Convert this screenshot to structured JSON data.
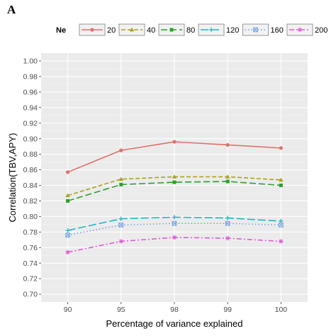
{
  "panel_label": "A",
  "chart_data": {
    "type": "line",
    "categories": [
      "90",
      "95",
      "98",
      "99",
      "100"
    ],
    "xlabel": "Percentage of variance explained",
    "ylabel": "Correlation(TBV,APY)",
    "ylim": [
      0.69,
      1.01
    ],
    "yticks": [
      "0.70",
      "0.72",
      "0.74",
      "0.76",
      "0.78",
      "0.80",
      "0.82",
      "0.84",
      "0.86",
      "0.88",
      "0.90",
      "0.92",
      "0.94",
      "0.96",
      "0.98",
      "1.00"
    ],
    "grid": true,
    "legend_position": "top",
    "legend_title": "Ne",
    "series": [
      {
        "name": "20",
        "values": [
          0.857,
          0.885,
          0.896,
          0.892,
          0.888
        ],
        "color": "#e0706b",
        "dash": "",
        "marker": "circle"
      },
      {
        "name": "40",
        "values": [
          0.827,
          0.848,
          0.851,
          0.851,
          0.847
        ],
        "color": "#aba21f",
        "dash": "6 3",
        "marker": "triangle"
      },
      {
        "name": "80",
        "values": [
          0.82,
          0.841,
          0.844,
          0.845,
          0.84
        ],
        "color": "#2ca02c",
        "dash": "9 4",
        "marker": "square"
      },
      {
        "name": "120",
        "values": [
          0.782,
          0.797,
          0.799,
          0.798,
          0.794
        ],
        "color": "#1fb7c4",
        "dash": "11 4",
        "marker": "plus"
      },
      {
        "name": "160",
        "values": [
          0.776,
          0.789,
          0.791,
          0.791,
          0.789
        ],
        "color": "#6e9fe0",
        "dash": "1.5 3",
        "marker": "squarex"
      },
      {
        "name": "200",
        "values": [
          0.754,
          0.768,
          0.773,
          0.772,
          0.768
        ],
        "color": "#e05ad8",
        "dash": "7 3 2 3",
        "marker": "asterisk"
      }
    ]
  }
}
